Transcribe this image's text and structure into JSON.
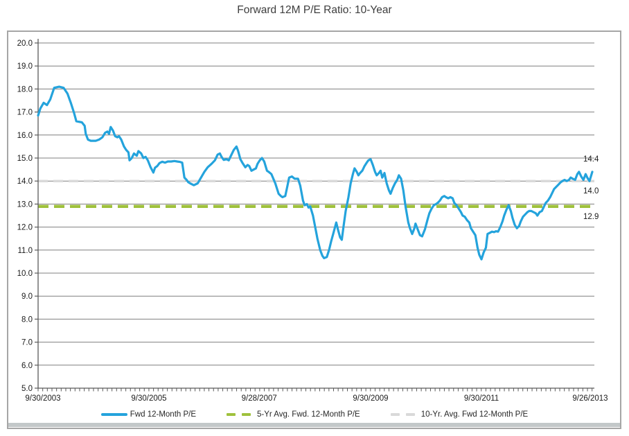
{
  "title": "Forward 12M P/E Ratio: 10-Year",
  "chart_data": {
    "type": "line",
    "title": "Forward 12M P/E Ratio: 10-Year",
    "ylabel": "",
    "xlabel": "",
    "ylim": [
      5.0,
      20.0
    ],
    "y_step": 1.0,
    "grid": "horizontal",
    "legend_position": "bottom",
    "x_ticks": [
      {
        "label": "9/30/2003",
        "year": 2003.75
      },
      {
        "label": "9/30/2005",
        "year": 2005.75
      },
      {
        "label": "9/28/2007",
        "year": 2007.74
      },
      {
        "label": "9/30/2009",
        "year": 2009.75
      },
      {
        "label": "9/30/2011",
        "year": 2011.75
      },
      {
        "label": "9/26/2013",
        "year": 2013.74
      }
    ],
    "x_range": [
      2003.75,
      2013.7875
    ],
    "x_minor_tick_step_years": 0.0833,
    "colors": {
      "series_blue": "#24a3dc",
      "avg5_green": "#9fc13c",
      "avg10_gray": "#d9d9d9",
      "gridline": "#7f7f7f",
      "axis": "#595959",
      "tick_text": "#1a1a1a",
      "title_text": "#3d3d3d",
      "frame_border": "#a6a6a6"
    },
    "series": [
      {
        "name": "Fwd 12-Month P/E",
        "style": "solid",
        "color": "#24a3dc",
        "points": [
          [
            2003.75,
            16.85
          ],
          [
            2003.79,
            17.15
          ],
          [
            2003.85,
            17.4
          ],
          [
            2003.91,
            17.3
          ],
          [
            2003.97,
            17.55
          ],
          [
            2004.04,
            18.05
          ],
          [
            2004.13,
            18.1
          ],
          [
            2004.21,
            18.05
          ],
          [
            2004.28,
            17.8
          ],
          [
            2004.34,
            17.4
          ],
          [
            2004.4,
            16.95
          ],
          [
            2004.44,
            16.6
          ],
          [
            2004.54,
            16.55
          ],
          [
            2004.59,
            16.4
          ],
          [
            2004.61,
            16.05
          ],
          [
            2004.65,
            15.8
          ],
          [
            2004.7,
            15.75
          ],
          [
            2004.79,
            15.75
          ],
          [
            2004.85,
            15.8
          ],
          [
            2004.91,
            15.9
          ],
          [
            2004.96,
            16.1
          ],
          [
            2005.0,
            16.15
          ],
          [
            2005.03,
            16.05
          ],
          [
            2005.06,
            16.35
          ],
          [
            2005.1,
            16.2
          ],
          [
            2005.14,
            15.95
          ],
          [
            2005.18,
            15.9
          ],
          [
            2005.21,
            15.95
          ],
          [
            2005.25,
            15.8
          ],
          [
            2005.3,
            15.5
          ],
          [
            2005.34,
            15.35
          ],
          [
            2005.38,
            15.25
          ],
          [
            2005.4,
            14.9
          ],
          [
            2005.44,
            15.0
          ],
          [
            2005.48,
            15.2
          ],
          [
            2005.53,
            15.1
          ],
          [
            2005.56,
            15.3
          ],
          [
            2005.61,
            15.2
          ],
          [
            2005.65,
            15.0
          ],
          [
            2005.69,
            15.05
          ],
          [
            2005.73,
            14.9
          ],
          [
            2005.78,
            14.6
          ],
          [
            2005.83,
            14.37
          ],
          [
            2005.86,
            14.58
          ],
          [
            2005.9,
            14.65
          ],
          [
            2005.94,
            14.78
          ],
          [
            2005.99,
            14.84
          ],
          [
            2006.04,
            14.8
          ],
          [
            2006.09,
            14.85
          ],
          [
            2006.15,
            14.85
          ],
          [
            2006.21,
            14.87
          ],
          [
            2006.26,
            14.85
          ],
          [
            2006.31,
            14.83
          ],
          [
            2006.35,
            14.8
          ],
          [
            2006.39,
            14.15
          ],
          [
            2006.43,
            14.05
          ],
          [
            2006.46,
            13.95
          ],
          [
            2006.51,
            13.88
          ],
          [
            2006.56,
            13.82
          ],
          [
            2006.63,
            13.9
          ],
          [
            2006.69,
            14.15
          ],
          [
            2006.75,
            14.4
          ],
          [
            2006.81,
            14.6
          ],
          [
            2006.88,
            14.75
          ],
          [
            2006.94,
            14.9
          ],
          [
            2006.99,
            15.15
          ],
          [
            2007.03,
            15.2
          ],
          [
            2007.06,
            15.05
          ],
          [
            2007.1,
            14.92
          ],
          [
            2007.15,
            14.95
          ],
          [
            2007.19,
            14.9
          ],
          [
            2007.24,
            15.15
          ],
          [
            2007.28,
            15.35
          ],
          [
            2007.33,
            15.5
          ],
          [
            2007.36,
            15.3
          ],
          [
            2007.4,
            14.95
          ],
          [
            2007.44,
            14.78
          ],
          [
            2007.49,
            14.6
          ],
          [
            2007.53,
            14.7
          ],
          [
            2007.56,
            14.65
          ],
          [
            2007.6,
            14.45
          ],
          [
            2007.64,
            14.5
          ],
          [
            2007.68,
            14.55
          ],
          [
            2007.71,
            14.75
          ],
          [
            2007.75,
            14.9
          ],
          [
            2007.79,
            15.0
          ],
          [
            2007.83,
            14.85
          ],
          [
            2007.88,
            14.45
          ],
          [
            2007.91,
            14.4
          ],
          [
            2007.96,
            14.3
          ],
          [
            2008.03,
            13.9
          ],
          [
            2008.09,
            13.45
          ],
          [
            2008.13,
            13.35
          ],
          [
            2008.16,
            13.3
          ],
          [
            2008.21,
            13.35
          ],
          [
            2008.25,
            13.8
          ],
          [
            2008.28,
            14.15
          ],
          [
            2008.33,
            14.2
          ],
          [
            2008.38,
            14.1
          ],
          [
            2008.44,
            14.1
          ],
          [
            2008.48,
            13.8
          ],
          [
            2008.53,
            13.15
          ],
          [
            2008.56,
            12.95
          ],
          [
            2008.6,
            13.0
          ],
          [
            2008.63,
            12.85
          ],
          [
            2008.66,
            12.9
          ],
          [
            2008.71,
            12.5
          ],
          [
            2008.75,
            12.0
          ],
          [
            2008.79,
            11.5
          ],
          [
            2008.84,
            11.0
          ],
          [
            2008.88,
            10.75
          ],
          [
            2008.91,
            10.65
          ],
          [
            2008.96,
            10.7
          ],
          [
            2009.0,
            11.0
          ],
          [
            2009.04,
            11.4
          ],
          [
            2009.08,
            11.75
          ],
          [
            2009.13,
            12.2
          ],
          [
            2009.16,
            11.9
          ],
          [
            2009.2,
            11.55
          ],
          [
            2009.23,
            11.45
          ],
          [
            2009.26,
            12.0
          ],
          [
            2009.3,
            12.7
          ],
          [
            2009.35,
            13.3
          ],
          [
            2009.39,
            13.9
          ],
          [
            2009.43,
            14.3
          ],
          [
            2009.46,
            14.55
          ],
          [
            2009.5,
            14.4
          ],
          [
            2009.53,
            14.25
          ],
          [
            2009.56,
            14.35
          ],
          [
            2009.6,
            14.45
          ],
          [
            2009.64,
            14.65
          ],
          [
            2009.68,
            14.8
          ],
          [
            2009.71,
            14.9
          ],
          [
            2009.75,
            14.95
          ],
          [
            2009.79,
            14.7
          ],
          [
            2009.83,
            14.4
          ],
          [
            2009.86,
            14.25
          ],
          [
            2009.9,
            14.35
          ],
          [
            2009.93,
            14.45
          ],
          [
            2009.96,
            14.15
          ],
          [
            2010.0,
            14.35
          ],
          [
            2010.04,
            13.9
          ],
          [
            2010.08,
            13.6
          ],
          [
            2010.11,
            13.45
          ],
          [
            2010.15,
            13.7
          ],
          [
            2010.19,
            13.9
          ],
          [
            2010.23,
            14.05
          ],
          [
            2010.26,
            14.25
          ],
          [
            2010.3,
            14.1
          ],
          [
            2010.34,
            13.6
          ],
          [
            2010.38,
            12.9
          ],
          [
            2010.43,
            12.2
          ],
          [
            2010.46,
            11.95
          ],
          [
            2010.5,
            11.7
          ],
          [
            2010.54,
            11.95
          ],
          [
            2010.56,
            12.15
          ],
          [
            2010.6,
            11.9
          ],
          [
            2010.64,
            11.65
          ],
          [
            2010.68,
            11.6
          ],
          [
            2010.73,
            11.9
          ],
          [
            2010.78,
            12.35
          ],
          [
            2010.81,
            12.6
          ],
          [
            2010.85,
            12.8
          ],
          [
            2010.89,
            12.95
          ],
          [
            2010.93,
            13.0
          ],
          [
            2010.96,
            13.05
          ],
          [
            2011.0,
            13.15
          ],
          [
            2011.04,
            13.3
          ],
          [
            2011.08,
            13.35
          ],
          [
            2011.11,
            13.3
          ],
          [
            2011.15,
            13.25
          ],
          [
            2011.19,
            13.3
          ],
          [
            2011.23,
            13.25
          ],
          [
            2011.26,
            13.05
          ],
          [
            2011.3,
            12.95
          ],
          [
            2011.34,
            12.8
          ],
          [
            2011.38,
            12.65
          ],
          [
            2011.41,
            12.5
          ],
          [
            2011.45,
            12.45
          ],
          [
            2011.49,
            12.3
          ],
          [
            2011.53,
            12.2
          ],
          [
            2011.56,
            11.95
          ],
          [
            2011.6,
            11.8
          ],
          [
            2011.64,
            11.65
          ],
          [
            2011.68,
            11.1
          ],
          [
            2011.71,
            10.8
          ],
          [
            2011.75,
            10.6
          ],
          [
            2011.79,
            10.9
          ],
          [
            2011.83,
            11.1
          ],
          [
            2011.86,
            11.7
          ],
          [
            2011.9,
            11.75
          ],
          [
            2011.94,
            11.8
          ],
          [
            2011.98,
            11.78
          ],
          [
            2012.01,
            11.82
          ],
          [
            2012.05,
            11.8
          ],
          [
            2012.09,
            12.0
          ],
          [
            2012.13,
            12.25
          ],
          [
            2012.16,
            12.5
          ],
          [
            2012.2,
            12.75
          ],
          [
            2012.24,
            12.95
          ],
          [
            2012.28,
            12.7
          ],
          [
            2012.31,
            12.4
          ],
          [
            2012.35,
            12.1
          ],
          [
            2012.39,
            11.95
          ],
          [
            2012.43,
            12.05
          ],
          [
            2012.46,
            12.25
          ],
          [
            2012.5,
            12.45
          ],
          [
            2012.54,
            12.55
          ],
          [
            2012.58,
            12.65
          ],
          [
            2012.61,
            12.7
          ],
          [
            2012.65,
            12.7
          ],
          [
            2012.69,
            12.65
          ],
          [
            2012.73,
            12.6
          ],
          [
            2012.76,
            12.5
          ],
          [
            2012.8,
            12.65
          ],
          [
            2012.84,
            12.7
          ],
          [
            2012.88,
            12.9
          ],
          [
            2012.91,
            13.05
          ],
          [
            2012.95,
            13.15
          ],
          [
            2012.99,
            13.3
          ],
          [
            2013.03,
            13.5
          ],
          [
            2013.06,
            13.65
          ],
          [
            2013.1,
            13.75
          ],
          [
            2013.14,
            13.85
          ],
          [
            2013.18,
            13.95
          ],
          [
            2013.21,
            14.0
          ],
          [
            2013.25,
            14.05
          ],
          [
            2013.29,
            14.0
          ],
          [
            2013.33,
            14.05
          ],
          [
            2013.36,
            14.15
          ],
          [
            2013.4,
            14.1
          ],
          [
            2013.44,
            14.05
          ],
          [
            2013.48,
            14.3
          ],
          [
            2013.51,
            14.4
          ],
          [
            2013.55,
            14.2
          ],
          [
            2013.59,
            14.05
          ],
          [
            2013.63,
            14.3
          ],
          [
            2013.66,
            14.15
          ],
          [
            2013.7,
            14.0
          ],
          [
            2013.75,
            14.4
          ]
        ]
      },
      {
        "name": "5-Yr Avg. Fwd. 12-Month P/E",
        "style": "dashed",
        "color": "#9fc13c",
        "value": 12.9
      },
      {
        "name": "10-Yr. Avg. Fwd 12-Month P/E",
        "style": "dashed",
        "color": "#d9d9d9",
        "value": 14.0
      }
    ],
    "annotations": [
      {
        "label": "14.4",
        "value": 14.4,
        "placement": "above"
      },
      {
        "label": "14.0",
        "value": 14.0,
        "placement": "below"
      },
      {
        "label": "12.9",
        "value": 12.9,
        "placement": "below"
      }
    ]
  }
}
